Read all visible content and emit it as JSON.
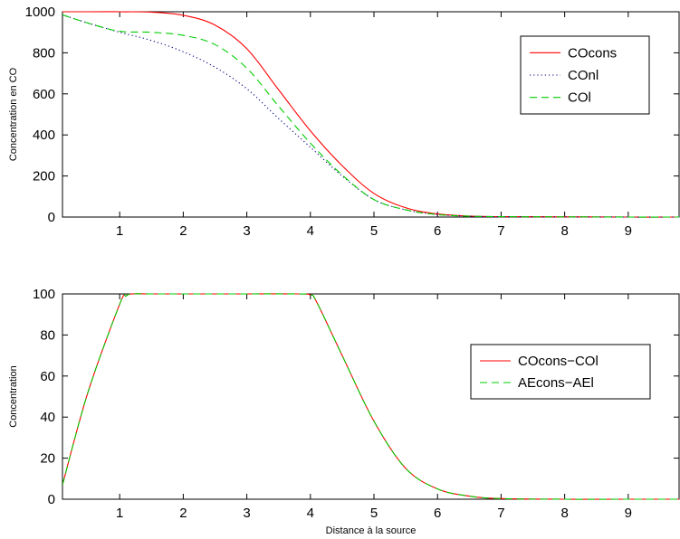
{
  "chart_data": [
    {
      "type": "line",
      "title": "",
      "xlabel": "",
      "ylabel": "Concentration en CO",
      "xlim": [
        0.1,
        9.8
      ],
      "ylim": [
        0,
        1000
      ],
      "xticks": [
        1,
        2,
        3,
        4,
        5,
        6,
        7,
        8,
        9
      ],
      "yticks": [
        0,
        200,
        400,
        600,
        800,
        1000
      ],
      "grid": false,
      "legend_position": "top-right",
      "series": [
        {
          "name": "COcons",
          "color": "#ff0000",
          "style": "solid",
          "x": [
            0.1,
            0.5,
            1.0,
            1.5,
            2.0,
            2.5,
            3.0,
            3.5,
            4.0,
            4.5,
            5.0,
            5.5,
            6.0,
            6.5,
            7.0,
            8.0,
            9.0,
            9.8
          ],
          "y": [
            1000,
            1000,
            1000,
            998,
            983,
            935,
            820,
            620,
            420,
            250,
            115,
            45,
            15,
            5,
            2,
            1,
            0,
            0
          ]
        },
        {
          "name": "COnl",
          "color": "#000080",
          "style": "dotted",
          "x": [
            0.1,
            0.5,
            1.0,
            1.5,
            2.0,
            2.5,
            3.0,
            3.5,
            4.0,
            4.5,
            5.0,
            5.5,
            6.0,
            6.5,
            7.0,
            8.0,
            9.0,
            9.8
          ],
          "y": [
            985,
            945,
            900,
            860,
            805,
            730,
            625,
            480,
            340,
            200,
            85,
            35,
            12,
            4,
            2,
            1,
            0,
            0
          ]
        },
        {
          "name": "COl",
          "color": "#00cc00",
          "style": "dashed",
          "x": [
            0.1,
            0.5,
            1.0,
            1.5,
            2.0,
            2.5,
            3.0,
            3.5,
            4.0,
            4.5,
            5.0,
            5.5,
            6.0,
            6.5,
            7.0,
            8.0,
            9.0,
            9.8
          ],
          "y": [
            985,
            945,
            905,
            900,
            885,
            840,
            725,
            540,
            360,
            205,
            85,
            35,
            12,
            4,
            2,
            1,
            0,
            0
          ]
        }
      ]
    },
    {
      "type": "line",
      "title": "",
      "xlabel": "Distance à la source",
      "ylabel": "Concentration",
      "xlim": [
        0.1,
        9.8
      ],
      "ylim": [
        0,
        100
      ],
      "xticks": [
        1,
        2,
        3,
        4,
        5,
        6,
        7,
        8,
        9
      ],
      "yticks": [
        0,
        20,
        40,
        60,
        80,
        100
      ],
      "grid": false,
      "legend_position": "center-right",
      "series": [
        {
          "name": "COcons−COl",
          "color": "#ff0000",
          "style": "solid",
          "x": [
            0.1,
            0.5,
            1.0,
            1.1,
            1.2,
            1.5,
            2.0,
            3.0,
            3.8,
            4.0,
            4.1,
            4.5,
            5.0,
            5.5,
            6.0,
            6.5,
            7.0,
            8.0,
            9.0,
            9.8
          ],
          "y": [
            7,
            52,
            95,
            99,
            100,
            100,
            100,
            100,
            100,
            99.5,
            96,
            70,
            38,
            15,
            5,
            1.5,
            0.3,
            0,
            0,
            0
          ]
        },
        {
          "name": "AEcons−AEl",
          "color": "#00cc00",
          "style": "dashed",
          "x": [
            0.1,
            0.5,
            1.0,
            1.1,
            1.2,
            1.5,
            2.0,
            3.0,
            3.8,
            4.0,
            4.1,
            4.5,
            5.0,
            5.5,
            6.0,
            6.5,
            7.0,
            8.0,
            9.0,
            9.8
          ],
          "y": [
            7,
            52,
            95,
            99,
            100,
            100,
            100,
            100,
            100,
            99.5,
            96,
            70,
            38,
            15,
            5,
            1.5,
            0.3,
            0,
            0,
            0
          ]
        }
      ]
    }
  ]
}
